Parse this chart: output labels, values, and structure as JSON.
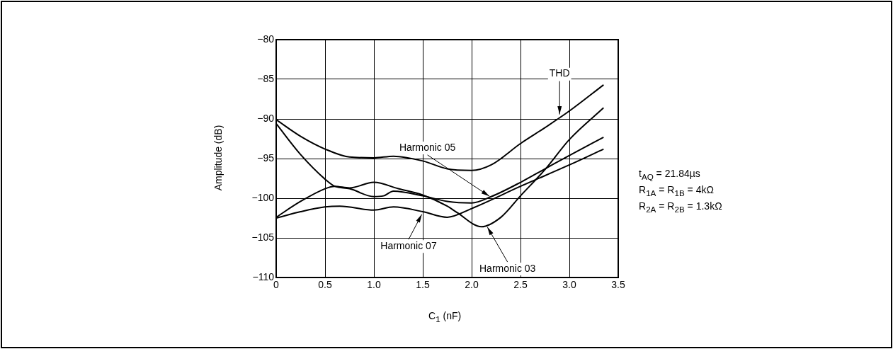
{
  "chart_data": {
    "type": "line",
    "xlabel": "C$_{1}$ (nF)",
    "ylabel": "Amplitude (dB)",
    "xlim": [
      0,
      3.5
    ],
    "xticks": [
      0,
      {
        "value": 0.5,
        "label": "0.5"
      },
      {
        "value": 1,
        "label": "1.0"
      },
      {
        "value": 1.5,
        "label": "1.5"
      },
      {
        "value": 2,
        "label": "2.0"
      },
      {
        "value": 2.5,
        "label": "2.5"
      },
      {
        "value": 3,
        "label": "3.0"
      },
      {
        "value": 3.5,
        "label": "3.5"
      }
    ],
    "ylim": [
      -110,
      -80
    ],
    "yticks": [
      {
        "value": -110,
        "label": "−110"
      },
      {
        "value": -105,
        "label": "−105"
      },
      {
        "value": -100,
        "label": "−100"
      },
      {
        "value": -95,
        "label": "−95"
      },
      {
        "value": -90,
        "label": "−90"
      },
      {
        "value": -85,
        "label": "−85"
      },
      {
        "value": -80,
        "label": "−80"
      }
    ],
    "grid": true,
    "legend": false,
    "marker": "none",
    "line_style": "solid",
    "series": [
      {
        "color": "#000000",
        "x": [
          0,
          0.25,
          0.5,
          0.75,
          1.0,
          1.2,
          1.5,
          1.75,
          2.0,
          2.2,
          2.5,
          2.75,
          3.0,
          3.35
        ],
        "values": [
          -90.1,
          -92.2,
          -93.8,
          -94.8,
          -94.9,
          -94.7,
          -95.3,
          -96.3,
          -96.5,
          -95.8,
          -93.1,
          -91.1,
          -89.0,
          -85.7
        ]
      },
      {
        "color": "#000000",
        "x": [
          0,
          0.25,
          0.5,
          0.6,
          0.75,
          1.0,
          1.1,
          1.2,
          1.5,
          1.75,
          2.0,
          2.2,
          2.5,
          2.75,
          3.0,
          3.35
        ],
        "values": [
          -90.6,
          -94.5,
          -97.6,
          -98.5,
          -98.8,
          -99.8,
          -99.7,
          -99.1,
          -99.7,
          -100.4,
          -100.6,
          -99.8,
          -98.0,
          -96.3,
          -94.6,
          -92.3
        ]
      },
      {
        "color": "#000000",
        "x": [
          0,
          0.25,
          0.5,
          0.6,
          0.75,
          1.0,
          1.25,
          1.5,
          1.75,
          1.85,
          2.1,
          2.3,
          2.5,
          2.75,
          3.0,
          3.35
        ],
        "values": [
          -102.4,
          -100.4,
          -98.8,
          -98.5,
          -98.7,
          -98.0,
          -98.8,
          -99.6,
          -101.0,
          -101.8,
          -103.6,
          -102.4,
          -99.7,
          -96.4,
          -92.6,
          -88.6
        ]
      },
      {
        "color": "#000000",
        "x": [
          0,
          0.25,
          0.5,
          0.65,
          1.0,
          1.2,
          1.5,
          1.75,
          2.0,
          2.5,
          3.0,
          3.35
        ],
        "values": [
          -102.5,
          -101.7,
          -101.1,
          -101.0,
          -101.5,
          -101.1,
          -101.7,
          -102.4,
          -101.3,
          -98.5,
          -95.8,
          -93.8
        ]
      }
    ],
    "annotations": [
      {
        "text": "THD",
        "x": 2.9,
        "y": -89.7
      },
      {
        "text": "Harmonic 05",
        "x": 2.2,
        "y": -99.9
      },
      {
        "text": "Harmonic 07",
        "x": 1.5,
        "y": -101.8
      },
      {
        "text": "Harmonic 03",
        "x": 2.15,
        "y": -103.4
      },
      "t$_{AQ}$ = 21.84µs",
      "R$_{1A}$ = R$_{1B}$ = 4kΩ",
      "R$_{2A}$ = R$_{2B}$ = 1.3kΩ"
    ]
  }
}
